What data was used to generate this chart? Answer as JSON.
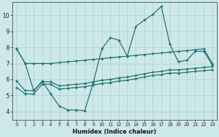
{
  "xlabel": "Humidex (Indice chaleur)",
  "bg_color": "#cde8e8",
  "grid_color": "#aacccc",
  "line_color": "#1a6e6e",
  "xlim": [
    -0.5,
    23.5
  ],
  "ylim": [
    3.5,
    10.8
  ],
  "xticks": [
    0,
    1,
    2,
    3,
    4,
    5,
    6,
    7,
    8,
    9,
    10,
    11,
    12,
    13,
    14,
    15,
    16,
    17,
    18,
    19,
    20,
    21,
    22,
    23
  ],
  "yticks": [
    4,
    5,
    6,
    7,
    8,
    9,
    10
  ],
  "line1_y": [
    7.9,
    7.0,
    7.0,
    7.0,
    7.0,
    7.05,
    7.1,
    7.15,
    7.2,
    7.25,
    7.3,
    7.35,
    7.4,
    7.45,
    7.5,
    7.55,
    7.6,
    7.65,
    7.7,
    7.75,
    7.8,
    7.85,
    7.9,
    7.0
  ],
  "line2_y": [
    7.9,
    7.0,
    5.3,
    5.9,
    5.1,
    4.35,
    4.1,
    4.1,
    4.05,
    5.8,
    7.9,
    8.6,
    8.45,
    7.45,
    9.3,
    9.7,
    10.05,
    10.55,
    8.2,
    7.1,
    7.2,
    7.75,
    7.75,
    6.9
  ],
  "line3_y": [
    5.9,
    5.3,
    5.3,
    5.85,
    5.85,
    5.6,
    5.65,
    5.7,
    5.75,
    5.85,
    5.95,
    6.0,
    6.1,
    6.15,
    6.25,
    6.35,
    6.45,
    6.5,
    6.6,
    6.6,
    6.65,
    6.7,
    6.75,
    6.8
  ],
  "line4_y": [
    5.5,
    5.1,
    5.1,
    5.7,
    5.7,
    5.4,
    5.45,
    5.5,
    5.55,
    5.65,
    5.75,
    5.8,
    5.9,
    5.95,
    6.05,
    6.15,
    6.25,
    6.3,
    6.4,
    6.4,
    6.45,
    6.5,
    6.55,
    6.6
  ]
}
